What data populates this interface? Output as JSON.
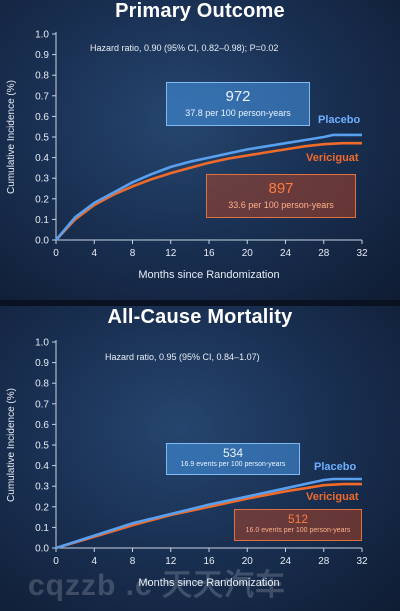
{
  "chart_data": [
    {
      "type": "line",
      "title": "Primary Outcome",
      "xlabel": "Months since Randomization",
      "ylabel": "Cumulative Incidence (%)",
      "xlim": [
        0,
        32
      ],
      "ylim": [
        0,
        1.0
      ],
      "x_ticks": [
        "0",
        "4",
        "8",
        "12",
        "16",
        "20",
        "24",
        "28",
        "32"
      ],
      "y_ticks": [
        "0.0",
        "0.1",
        "0.2",
        "0.3",
        "0.4",
        "0.5",
        "0.6",
        "0.7",
        "0.8",
        "0.9",
        "1.0"
      ],
      "grid": false,
      "annotation": "Hazard ratio, 0.90 (95% CI, 0.82–0.98); P=0.02",
      "series": [
        {
          "name": "Placebo",
          "color": "#5aa0f0",
          "count": "972",
          "rate": "37.8 per 100 person-years",
          "x": [
            0,
            2,
            4,
            6,
            8,
            10,
            12,
            14,
            16,
            18,
            20,
            22,
            24,
            26,
            28,
            29,
            32
          ],
          "y": [
            0,
            0.11,
            0.18,
            0.23,
            0.28,
            0.32,
            0.355,
            0.38,
            0.4,
            0.42,
            0.44,
            0.455,
            0.47,
            0.485,
            0.5,
            0.51,
            0.51
          ]
        },
        {
          "name": "Vericiguat",
          "color": "#f06a2a",
          "count": "897",
          "rate": "33.6 per 100 person-years",
          "x": [
            0,
            2,
            4,
            6,
            8,
            10,
            12,
            14,
            16,
            18,
            20,
            22,
            24,
            26,
            28,
            30,
            32
          ],
          "y": [
            0,
            0.1,
            0.17,
            0.22,
            0.26,
            0.295,
            0.325,
            0.35,
            0.375,
            0.395,
            0.41,
            0.425,
            0.44,
            0.455,
            0.465,
            0.47,
            0.47
          ]
        }
      ]
    },
    {
      "type": "line",
      "title": "All-Cause Mortality",
      "xlabel": "Months since Randomization",
      "ylabel": "Cumulative Incidence (%)",
      "xlim": [
        0,
        32
      ],
      "ylim": [
        0,
        1.0
      ],
      "x_ticks": [
        "0",
        "4",
        "8",
        "12",
        "16",
        "20",
        "24",
        "28",
        "32"
      ],
      "y_ticks": [
        "0.0",
        "0.1",
        "0.2",
        "0.3",
        "0.4",
        "0.5",
        "0.6",
        "0.7",
        "0.8",
        "0.9",
        "1.0"
      ],
      "grid": false,
      "annotation": "Hazard ratio, 0.95 (95% CI, 0.84–1.07)",
      "series": [
        {
          "name": "Placebo",
          "color": "#5aa0f0",
          "count": "534",
          "rate": "16.9 events per 100 person-years",
          "x": [
            0,
            4,
            8,
            12,
            16,
            20,
            24,
            26,
            28,
            29,
            32
          ],
          "y": [
            0,
            0.06,
            0.12,
            0.165,
            0.21,
            0.25,
            0.29,
            0.31,
            0.33,
            0.335,
            0.335
          ]
        },
        {
          "name": "Vericiguat",
          "color": "#f06a2a",
          "count": "512",
          "rate": "16.0 events per 100 person-years",
          "x": [
            0,
            4,
            8,
            12,
            16,
            20,
            24,
            26,
            28,
            30,
            32
          ],
          "y": [
            0,
            0.055,
            0.11,
            0.16,
            0.2,
            0.24,
            0.275,
            0.29,
            0.305,
            0.31,
            0.31
          ]
        }
      ]
    }
  ],
  "watermark": "cqzzb .c  天天汽车"
}
